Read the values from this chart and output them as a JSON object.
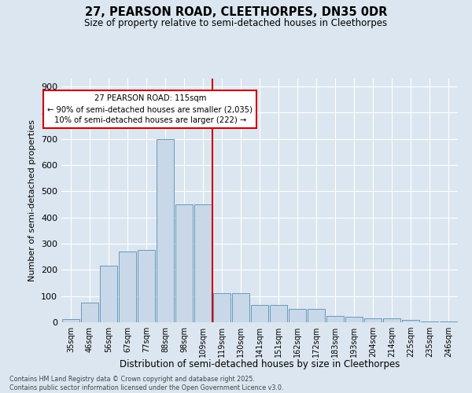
{
  "title": "27, PEARSON ROAD, CLEETHORPES, DN35 0DR",
  "subtitle": "Size of property relative to semi-detached houses in Cleethorpes",
  "xlabel": "Distribution of semi-detached houses by size in Cleethorpes",
  "ylabel": "Number of semi-detached properties",
  "categories": [
    "35sqm",
    "46sqm",
    "56sqm",
    "67sqm",
    "77sqm",
    "88sqm",
    "98sqm",
    "109sqm",
    "119sqm",
    "130sqm",
    "141sqm",
    "151sqm",
    "162sqm",
    "172sqm",
    "183sqm",
    "193sqm",
    "204sqm",
    "214sqm",
    "225sqm",
    "235sqm",
    "246sqm"
  ],
  "values": [
    12,
    75,
    215,
    270,
    275,
    700,
    450,
    450,
    110,
    110,
    65,
    65,
    50,
    50,
    25,
    20,
    15,
    15,
    10,
    3,
    2
  ],
  "bar_color": "#c8d8e8",
  "bar_edge_color": "#6699bb",
  "vline_color": "#cc0000",
  "annotation_text": "27 PEARSON ROAD: 115sqm\n← 90% of semi-detached houses are smaller (2,035)\n10% of semi-detached houses are larger (222) →",
  "annotation_box_color": "#ffffff",
  "annotation_box_edge": "#cc0000",
  "background_color": "#dce6f0",
  "footer": "Contains HM Land Registry data © Crown copyright and database right 2025.\nContains public sector information licensed under the Open Government Licence v3.0.",
  "ylim": [
    0,
    930
  ],
  "yticks": [
    0,
    100,
    200,
    300,
    400,
    500,
    600,
    700,
    800,
    900
  ]
}
